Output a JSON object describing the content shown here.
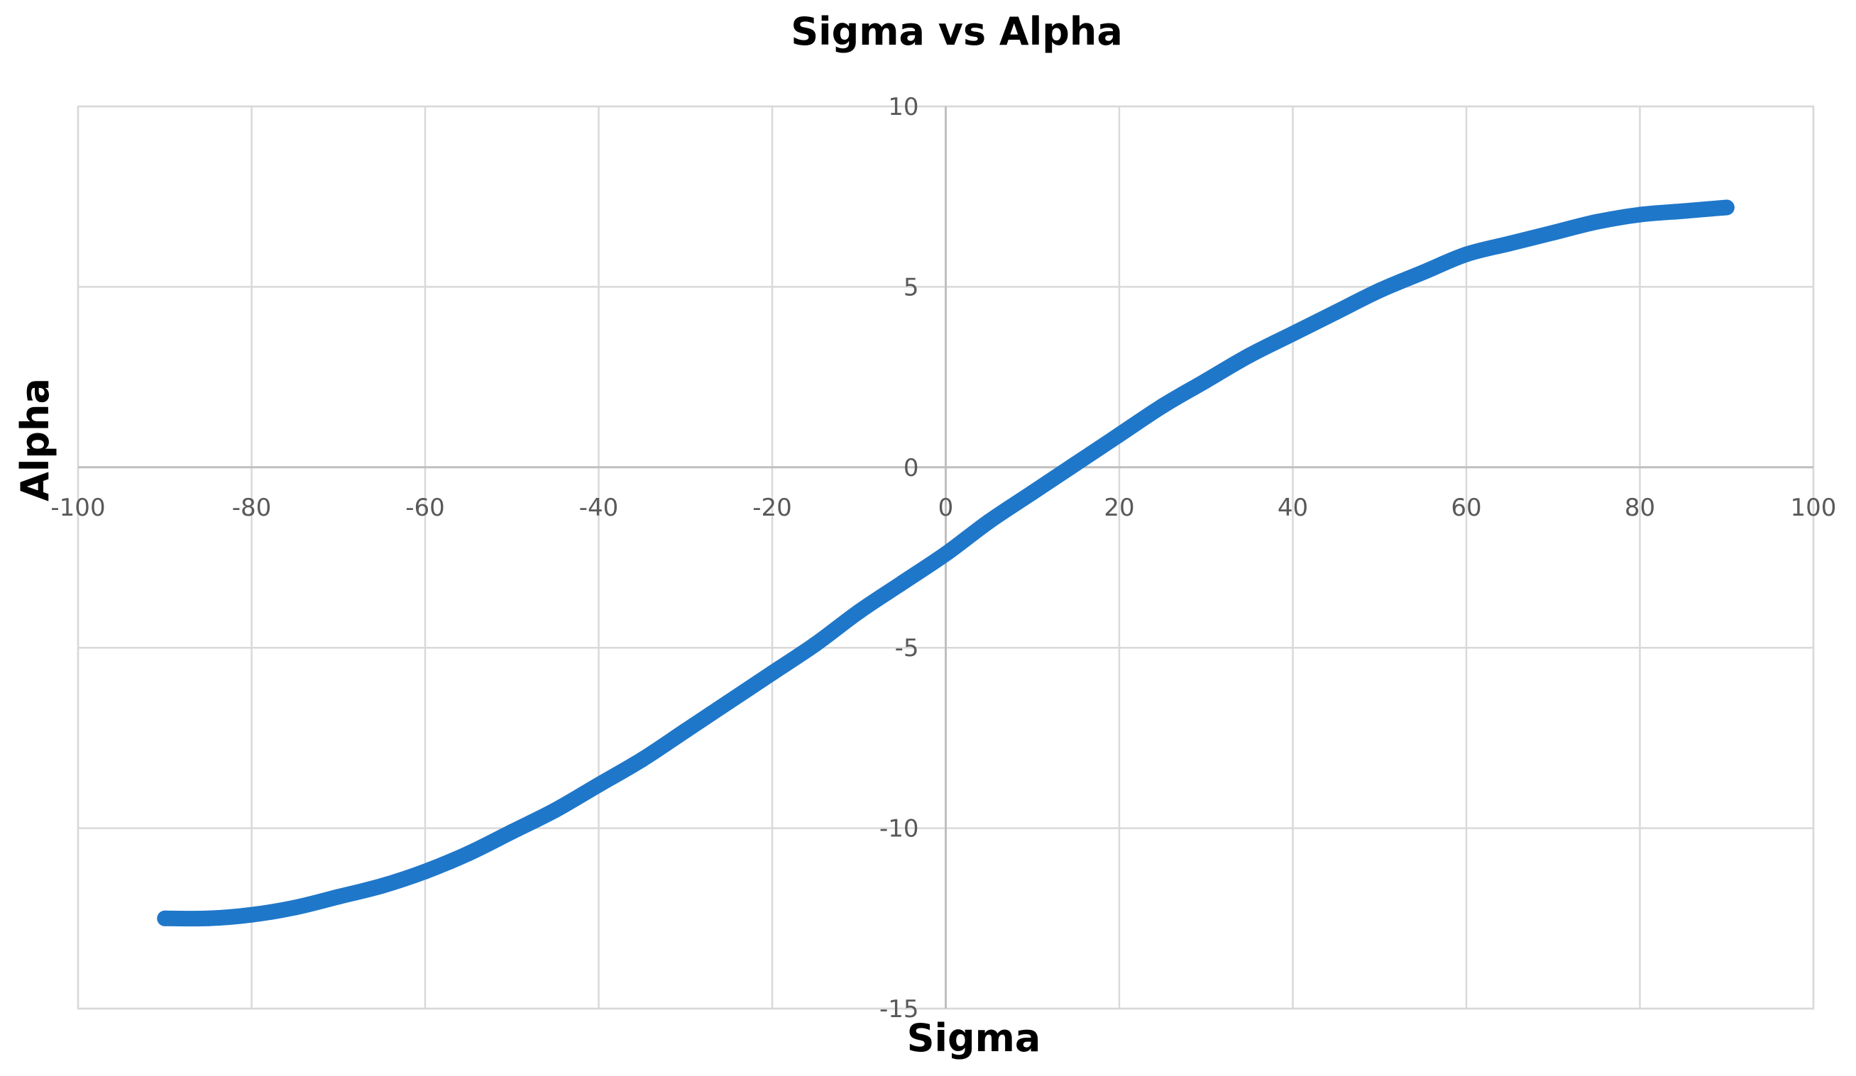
{
  "chart_data": {
    "type": "line",
    "title": "Sigma vs Alpha",
    "xlabel": "Sigma",
    "ylabel": "Alpha",
    "xlim": [
      -100,
      100
    ],
    "ylim": [
      -15,
      10
    ],
    "x_ticks": [
      -100,
      -80,
      -60,
      -40,
      -20,
      0,
      20,
      40,
      60,
      80,
      100
    ],
    "y_ticks": [
      -15,
      -10,
      -5,
      0,
      5,
      10
    ],
    "x_tick_labels": [
      "-100",
      "-80",
      "-60",
      "-40",
      "-20",
      "0",
      "20",
      "40",
      "60",
      "80",
      "100"
    ],
    "y_tick_labels": [
      "-15",
      "-10",
      "-5",
      "0",
      "5",
      "10"
    ],
    "grid": true,
    "legend": "none",
    "series": [
      {
        "color": "#1f77c9",
        "x": [
          -90,
          -85,
          -80,
          -75,
          -70,
          -65,
          -60,
          -55,
          -50,
          -45,
          -40,
          -35,
          -30,
          -25,
          -20,
          -15,
          -10,
          -5,
          0,
          5,
          10,
          15,
          20,
          25,
          30,
          35,
          40,
          45,
          50,
          55,
          60,
          65,
          70,
          75,
          80,
          85,
          90
        ],
        "y": [
          -12.5,
          -12.5,
          -12.4,
          -12.2,
          -11.9,
          -11.6,
          -11.2,
          -10.7,
          -10.1,
          -9.5,
          -8.8,
          -8.1,
          -7.3,
          -6.5,
          -5.7,
          -4.9,
          -4.0,
          -3.2,
          -2.4,
          -1.5,
          -0.7,
          0.1,
          0.9,
          1.7,
          2.4,
          3.1,
          3.7,
          4.3,
          4.9,
          5.4,
          5.9,
          6.2,
          6.5,
          6.8,
          7.0,
          7.1,
          7.2
        ]
      }
    ]
  }
}
